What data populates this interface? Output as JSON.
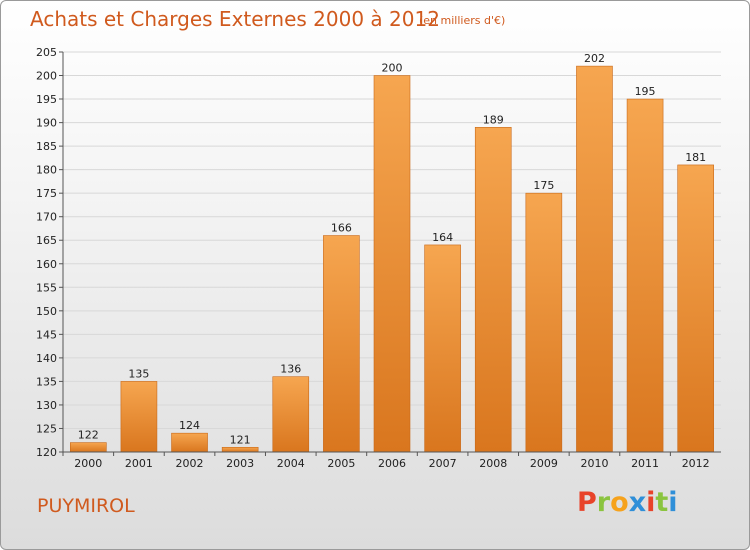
{
  "header": {
    "title": "Achats et Charges Externes 2000 à 2012",
    "unit": "(en milliers d'€)"
  },
  "footer": {
    "commune": "PUYMIROL",
    "logo_letters": [
      "P",
      "r",
      "o",
      "x",
      "i",
      "t",
      "i"
    ],
    "logo_colors": [
      "#e8432a",
      "#8bc43f",
      "#f6a21c",
      "#2f8fd8",
      "#e8432a",
      "#8bc43f",
      "#2f8fd8"
    ]
  },
  "colors": {
    "bar_top": "#f6a650",
    "bar_bottom": "#d9761e",
    "bar_edge": "#c8691a",
    "grid": "#d8d8d8",
    "axis": "#555555",
    "title": "#d05a1e"
  },
  "chart_data": {
    "type": "bar",
    "title": "Achats et Charges Externes 2000 à 2012",
    "subtitle": "(en milliers d'€)",
    "xlabel": "",
    "ylabel": "",
    "categories": [
      "2000",
      "2001",
      "2002",
      "2003",
      "2004",
      "2005",
      "2006",
      "2007",
      "2008",
      "2009",
      "2010",
      "2011",
      "2012"
    ],
    "values": [
      122,
      135,
      124,
      121,
      136,
      166,
      200,
      164,
      189,
      175,
      202,
      195,
      181
    ],
    "value_labels": [
      "122",
      "135",
      "124",
      "121",
      "136",
      "166",
      "200",
      "164",
      "189",
      "175",
      "202",
      "195",
      "181"
    ],
    "ylim": [
      120,
      205
    ],
    "yticks": [
      120,
      125,
      130,
      135,
      140,
      145,
      150,
      155,
      160,
      165,
      170,
      175,
      180,
      185,
      190,
      195,
      200,
      205
    ],
    "ytick_labels": [
      "120",
      "125",
      "130",
      "135",
      "140",
      "145",
      "150",
      "155",
      "160",
      "165",
      "170",
      "175",
      "180",
      "185",
      "190",
      "195",
      "200",
      "205"
    ],
    "grid": true,
    "legend": "none"
  }
}
